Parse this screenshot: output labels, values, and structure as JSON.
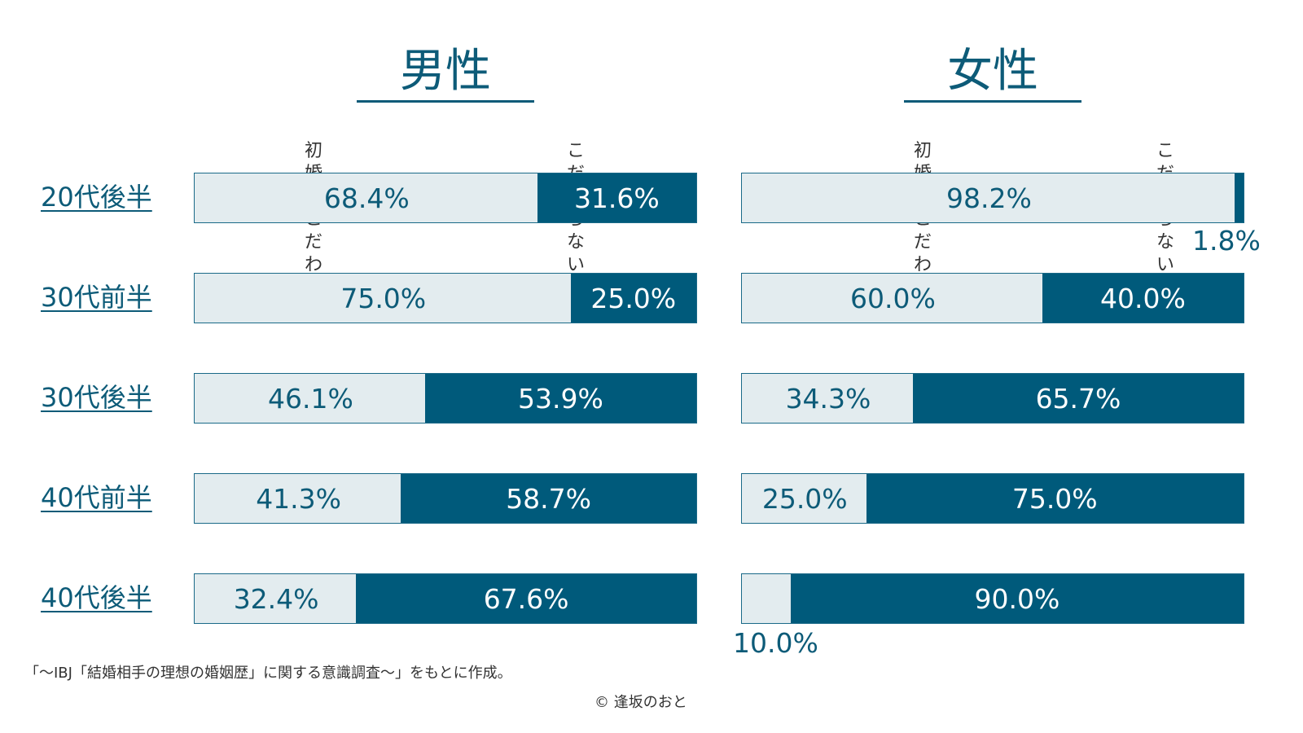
{
  "panels": [
    {
      "title": "男性",
      "header_a": "初婚にこだわる",
      "header_b": "こだわらない"
    },
    {
      "title": "女性",
      "header_a": "初婚にこだわる",
      "header_b": "こだわらない"
    }
  ],
  "chart_data": {
    "type": "bar",
    "orientation": "horizontal-stacked-100",
    "categories": [
      "20代後半",
      "30代前半",
      "30代後半",
      "40代前半",
      "40代後半"
    ],
    "panels": [
      {
        "title": "男性",
        "series": [
          {
            "name": "初婚にこだわる",
            "values": [
              68.4,
              75.0,
              46.1,
              41.3,
              32.4
            ],
            "labels": [
              "68.4%",
              "75.0%",
              "46.1%",
              "41.3%",
              "32.4%"
            ]
          },
          {
            "name": "こだわらない",
            "values": [
              31.6,
              25.0,
              53.9,
              58.7,
              67.6
            ],
            "labels": [
              "31.6%",
              "25.0%",
              "53.9%",
              "58.7%",
              "67.6%"
            ]
          }
        ]
      },
      {
        "title": "女性",
        "series": [
          {
            "name": "初婚にこだわる",
            "values": [
              98.2,
              60.0,
              34.3,
              25.0,
              10.0
            ],
            "labels": [
              "98.2%",
              "60.0%",
              "34.3%",
              "25.0%",
              "10.0%"
            ]
          },
          {
            "name": "こだわらない",
            "values": [
              1.8,
              40.0,
              65.7,
              75.0,
              90.0
            ],
            "labels": [
              "1.8%",
              "40.0%",
              "65.7%",
              "75.0%",
              "90.0%"
            ]
          }
        ]
      }
    ],
    "colors": {
      "a": "#e3ecef",
      "b": "#005a7b",
      "text": "#0d5b78"
    },
    "xlim": [
      0,
      100
    ]
  },
  "footnote": "「～IBJ「結婚相手の理想の婚姻歴」に関する意識調査～」をもとに作成。",
  "copyright": "© 逢坂のおと"
}
